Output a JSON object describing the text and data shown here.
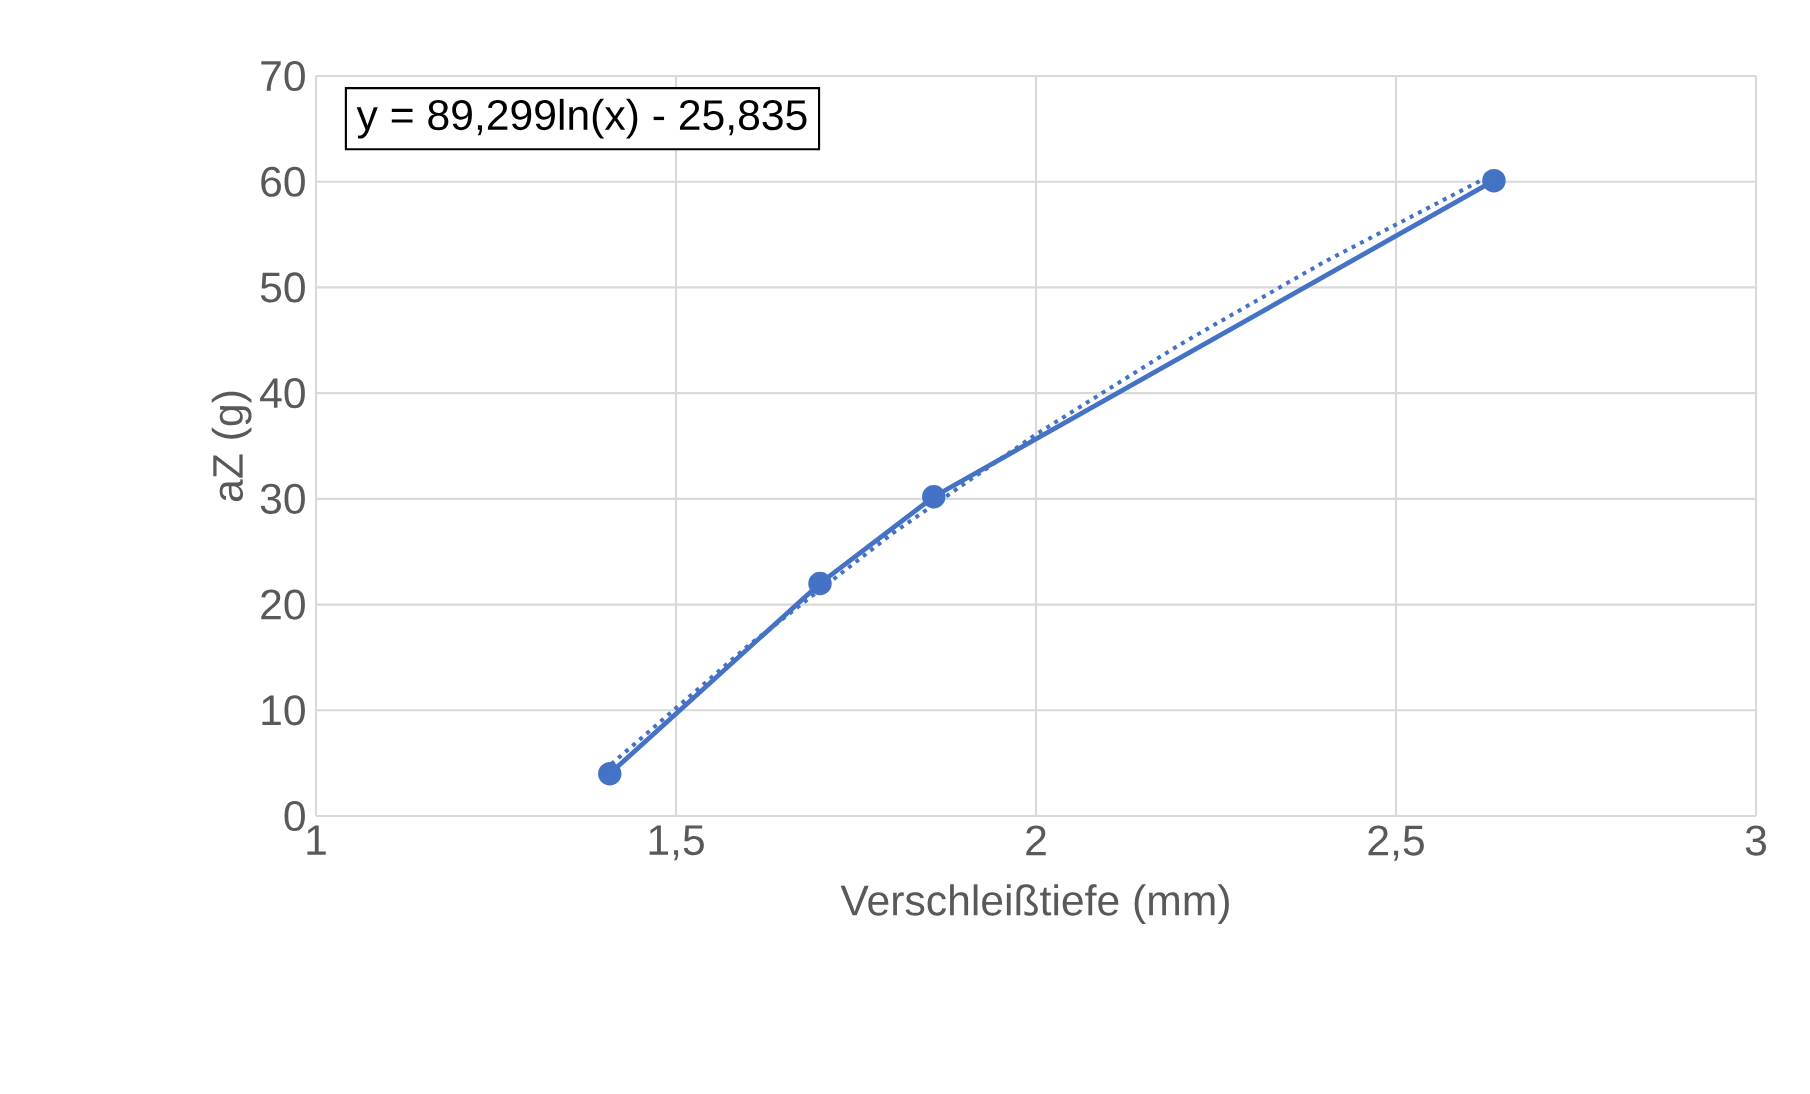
{
  "chart_data": {
    "type": "line",
    "xlabel": "Verschleißtiefe (mm)",
    "ylabel": "aZ (g)",
    "annotations": [
      "y = 89,299ln(x) - 25,835"
    ],
    "xlim": [
      1,
      3
    ],
    "ylim": [
      0,
      70
    ],
    "xticks": [
      1,
      {
        "value": 1.5,
        "label": "1,5"
      },
      2,
      {
        "value": 2.5,
        "label": "2,5"
      },
      3
    ],
    "yticks": [
      0,
      10,
      20,
      30,
      40,
      50,
      60,
      70
    ],
    "grid": true,
    "series": [
      {
        "color": "#4472c4",
        "marker": "circle",
        "line_style": "solid",
        "x": [
          1.408,
          1.7,
          1.858,
          2.636
        ],
        "values": [
          4,
          22,
          30.2,
          60.1
        ]
      },
      {
        "color": "#4472c4",
        "marker": "none",
        "line_style": "dotted",
        "x": [
          1.41,
          1.6,
          1.8,
          2.0,
          2.2,
          2.4,
          2.64
        ],
        "values": [
          4.9,
          16.1,
          26.7,
          36.1,
          44.6,
          52.4,
          60.9
        ]
      }
    ]
  }
}
